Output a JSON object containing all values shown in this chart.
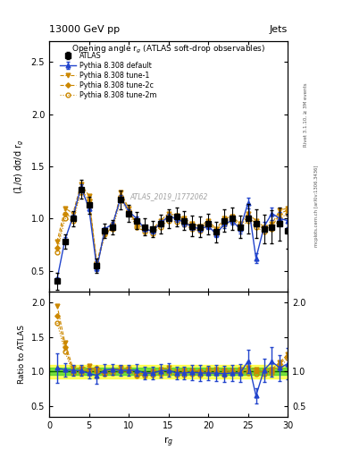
{
  "title_top": "13000 GeV pp",
  "title_right": "Jets",
  "plot_title": "Opening angle r$_g$ (ATLAS soft-drop observables)",
  "ylabel_main": "(1/σ) dσ/d r$_g$",
  "ylabel_ratio": "Ratio to ATLAS",
  "xlabel": "r$_g$",
  "watermark": "ATLAS_2019_I1772062",
  "rivet_label": "Rivet 3.1.10, ≥ 3M events",
  "arxiv_label": "mcplots.cern.ch [arXiv:1306.3436]",
  "x": [
    1,
    2,
    3,
    4,
    5,
    6,
    7,
    8,
    9,
    10,
    11,
    12,
    13,
    14,
    15,
    16,
    17,
    18,
    19,
    20,
    21,
    22,
    23,
    24,
    25,
    26,
    27,
    28,
    29,
    30
  ],
  "atlas_y": [
    0.4,
    0.78,
    1.0,
    1.28,
    1.13,
    0.55,
    0.88,
    0.92,
    1.18,
    1.05,
    0.98,
    0.92,
    0.9,
    0.95,
    1.0,
    1.02,
    0.98,
    0.93,
    0.92,
    0.95,
    0.87,
    0.98,
    1.0,
    0.92,
    1.0,
    0.95,
    0.9,
    0.92,
    0.95,
    0.88
  ],
  "atlas_yerr": [
    0.08,
    0.07,
    0.07,
    0.09,
    0.08,
    0.07,
    0.07,
    0.07,
    0.09,
    0.08,
    0.08,
    0.08,
    0.08,
    0.09,
    0.09,
    0.09,
    0.09,
    0.1,
    0.1,
    0.1,
    0.1,
    0.11,
    0.11,
    0.11,
    0.14,
    0.14,
    0.14,
    0.16,
    0.16,
    0.17
  ],
  "pythia_default_y": [
    0.42,
    0.8,
    1.02,
    1.3,
    1.1,
    0.52,
    0.9,
    0.95,
    1.2,
    1.07,
    1.0,
    0.9,
    0.88,
    0.96,
    1.02,
    1.0,
    0.96,
    0.92,
    0.9,
    0.93,
    0.85,
    0.95,
    0.98,
    0.9,
    1.15,
    0.62,
    0.92,
    1.05,
    1.0,
    0.98
  ],
  "pythia_default_yerr": [
    0.02,
    0.02,
    0.02,
    0.03,
    0.03,
    0.02,
    0.02,
    0.02,
    0.03,
    0.02,
    0.02,
    0.02,
    0.02,
    0.03,
    0.03,
    0.03,
    0.03,
    0.03,
    0.03,
    0.03,
    0.03,
    0.04,
    0.04,
    0.04,
    0.05,
    0.05,
    0.05,
    0.06,
    0.06,
    0.06
  ],
  "tune1_y": [
    0.78,
    1.1,
    1.05,
    1.33,
    1.22,
    0.55,
    0.85,
    0.92,
    1.25,
    1.1,
    0.92,
    0.88,
    0.9,
    0.98,
    1.05,
    1.03,
    1.0,
    0.95,
    0.93,
    0.98,
    0.9,
    1.0,
    1.02,
    0.95,
    1.05,
    0.98,
    0.92,
    0.95,
    1.08,
    1.1
  ],
  "tune2c_y": [
    0.72,
    1.05,
    1.0,
    1.28,
    1.18,
    0.58,
    0.88,
    0.95,
    1.22,
    1.08,
    0.95,
    0.9,
    0.88,
    0.95,
    1.02,
    1.0,
    0.97,
    0.93,
    0.91,
    0.96,
    0.88,
    0.97,
    1.0,
    0.93,
    1.02,
    0.95,
    0.9,
    0.92,
    1.05,
    1.08
  ],
  "tune2m_y": [
    0.68,
    1.0,
    0.98,
    1.25,
    1.15,
    0.55,
    0.85,
    0.9,
    1.18,
    1.05,
    0.92,
    0.87,
    0.86,
    0.92,
    0.98,
    0.97,
    0.94,
    0.9,
    0.88,
    0.93,
    0.85,
    0.94,
    0.98,
    0.9,
    0.98,
    0.92,
    0.87,
    0.9,
    1.0,
    1.05
  ],
  "atlas_color": "black",
  "default_color": "#2244CC",
  "tune_color": "#CC8800",
  "xlim": [
    0,
    30
  ],
  "ylim_main": [
    0.3,
    2.7
  ],
  "ylim_ratio": [
    0.35,
    2.15
  ],
  "green_band_inner": 0.05,
  "green_band_outer": 0.1,
  "yticks_main": [
    0.5,
    1.0,
    1.5,
    2.0,
    2.5
  ],
  "yticks_ratio": [
    0.5,
    1.0,
    1.5,
    2.0
  ],
  "xticks": [
    0,
    5,
    10,
    15,
    20,
    25,
    30
  ]
}
